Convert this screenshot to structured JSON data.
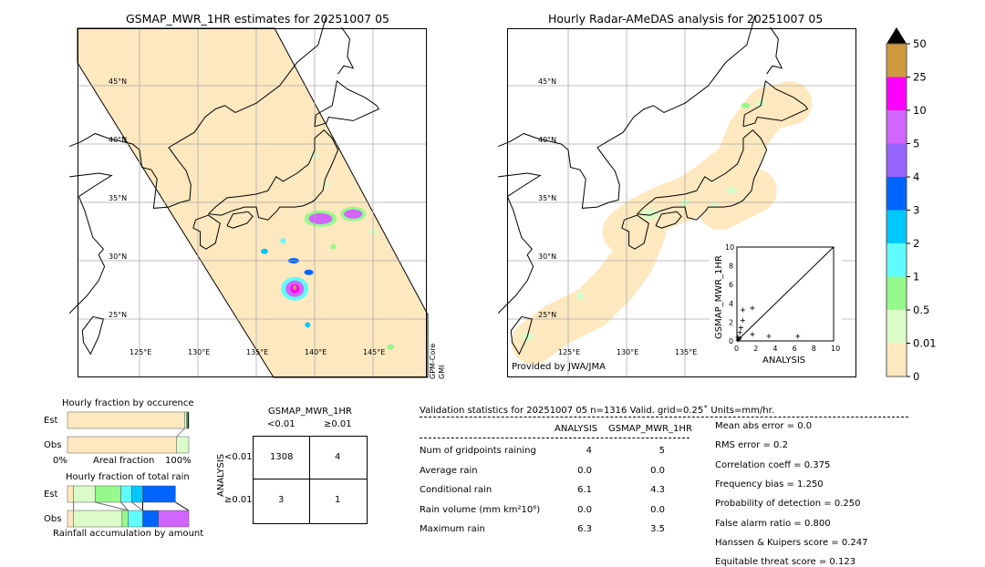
{
  "left_map": {
    "title": "GSMAP_MWR_1HR estimates for 20251007 05",
    "sensor_label_1": "GPM-Core",
    "sensor_label_2": "GMI",
    "lat_labels": [
      "45°N",
      "40°N",
      "35°N",
      "30°N",
      "25°N"
    ],
    "lon_labels": [
      "125°E",
      "130°E",
      "135°E",
      "140°E",
      "145°E"
    ]
  },
  "right_map": {
    "title": "Hourly Radar-AMeDAS analysis for 20251007 05",
    "credit": "Provided by JWA/JMA",
    "lat_labels": [
      "45°N",
      "40°N",
      "35°N",
      "30°N",
      "25°N"
    ],
    "lon_labels": [
      "125°E",
      "130°E",
      "135°E"
    ]
  },
  "colorbar": {
    "labels": [
      "0",
      "0.01",
      "0.5",
      "1",
      "2",
      "3",
      "4",
      "5",
      "10",
      "25",
      "50"
    ],
    "colors": [
      "#fee8bf",
      "#dbfcc9",
      "#96f98c",
      "#5ffcfc",
      "#00c8ff",
      "#0064ff",
      "#9664ff",
      "#d264ff",
      "#ff00ff",
      "#cf9a3f"
    ],
    "extend_color": "#000000"
  },
  "chart_data": {
    "type": "scatter",
    "xlabel": "ANALYSIS",
    "ylabel": "GSMAP_MWR_1HR",
    "xlim": [
      0,
      10
    ],
    "ylim": [
      0,
      10
    ],
    "xticks": [
      "0",
      "2",
      "4",
      "6",
      "8",
      "10"
    ],
    "yticks": [
      "0",
      "2",
      "4",
      "6",
      "8",
      "10"
    ],
    "points": [
      [
        0.1,
        0.1
      ],
      [
        0.2,
        0.2
      ],
      [
        0.3,
        0.3
      ],
      [
        0.1,
        0.4
      ],
      [
        0.3,
        0.9
      ],
      [
        0.4,
        1.4
      ],
      [
        0.6,
        2.2
      ],
      [
        0.6,
        3.3
      ],
      [
        1.6,
        3.5
      ],
      [
        1.6,
        0.7
      ],
      [
        3.3,
        0.5
      ],
      [
        6.3,
        0.5
      ]
    ],
    "diagonal": true
  },
  "occurrence": {
    "title": "Hourly fraction by occurence",
    "rows": [
      "Est",
      "Obs"
    ],
    "xlabel": "Areal fraction",
    "left_label": "0%",
    "right_label": "100%",
    "est": [
      0.965,
      0.015,
      0.01,
      0.01
    ],
    "obs": [
      0.9,
      0.1
    ]
  },
  "total_rain": {
    "title": "Hourly fraction of total rain",
    "rows": [
      "Est",
      "Obs"
    ],
    "xlabel": "Rainfall accumulation by amount",
    "est": [
      0.05,
      0.18,
      0.21,
      0.09,
      0.09,
      0.27
    ],
    "obs": [
      0.05,
      0.4,
      0.05,
      0.12,
      0.13,
      0.25
    ]
  },
  "contingency": {
    "col_title": "GSMAP_MWR_1HR",
    "cols": [
      "<0.01",
      "≥0.01"
    ],
    "row_title": "ANALYSIS",
    "rows": [
      "<0.01",
      "≥0.01"
    ],
    "cells": [
      [
        "1308",
        "4"
      ],
      [
        "3",
        "1"
      ]
    ]
  },
  "validation": {
    "header": "Validation statistics for 20251007 05  n=1316 Valid. grid=0.25˚ Units=mm/hr.",
    "col1": "ANALYSIS",
    "col2": "GSMAP_MWR_1HR",
    "rows": [
      {
        "label": "Num of gridpoints raining",
        "a": "4",
        "b": "5"
      },
      {
        "label": "Average rain",
        "a": "0.0",
        "b": "0.0"
      },
      {
        "label": "Conditional rain",
        "a": "6.1",
        "b": "4.3"
      },
      {
        "label": "Rain volume (mm km²10⁶)",
        "a": "0.0",
        "b": "0.0"
      },
      {
        "label": "Maximum rain",
        "a": "6.3",
        "b": "3.5"
      }
    ],
    "scores": [
      "Mean abs error =    0.0",
      "RMS error =    0.2",
      "Correlation coeff =  0.375",
      "Frequency bias =  1.250",
      "Probability of detection =  0.250",
      "False alarm ratio =  0.800",
      "Hanssen & Kuipers score =  0.247",
      "Equitable threat score =  0.123"
    ]
  }
}
